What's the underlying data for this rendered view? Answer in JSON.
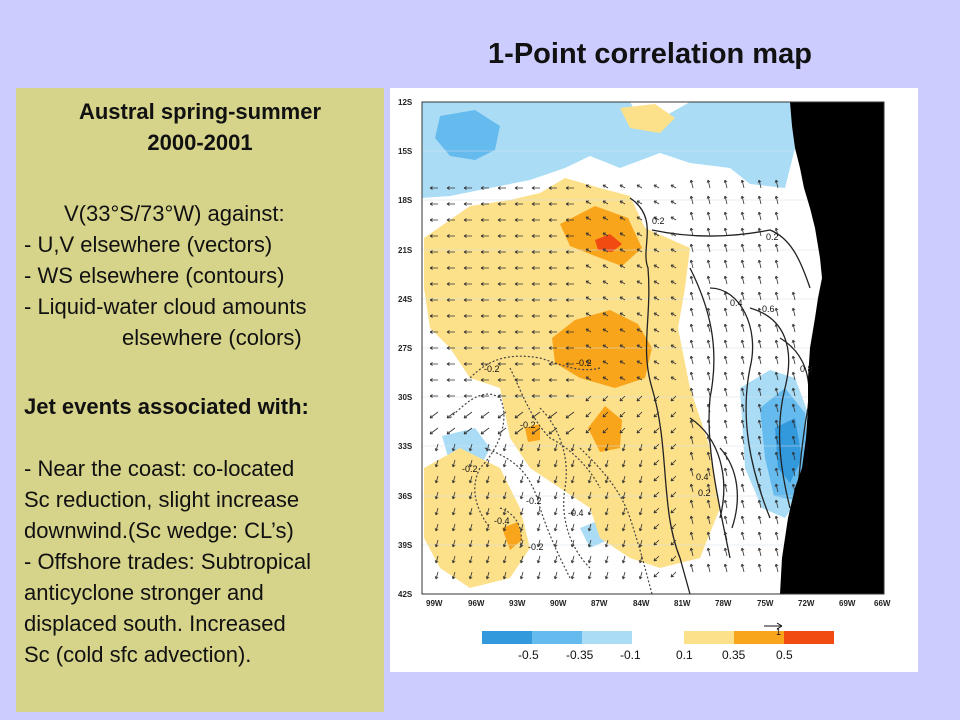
{
  "slide": {
    "title": "1-Point correlation map",
    "colors": {
      "background": "#ccccff",
      "panel": "#d6d38a"
    }
  },
  "panel": {
    "heading_line1": "Austral spring-summer",
    "heading_line2": "2000-2001",
    "lines": [
      "V(33°S/73°W) against:",
      "- U,V elsewhere (vectors)",
      "- WS elsewhere (contours)",
      "- Liquid-water cloud amounts",
      "elsewhere (colors)"
    ],
    "jet_heading": "Jet events associated with:",
    "findings": [
      "- Near the coast: co-located",
      "Sc reduction, slight increase",
      "downwind.(Sc wedge: CL’s)",
      "- Offshore trades: Subtropical",
      "anticyclone stronger and",
      "displaced south. Increased",
      "Sc (cold sfc advection)."
    ]
  },
  "map": {
    "lat_labels": [
      "12S",
      "15S",
      "18S",
      "21S",
      "24S",
      "27S",
      "30S",
      "33S",
      "36S",
      "39S",
      "42S"
    ],
    "lon_labels": [
      "99W",
      "96W",
      "93W",
      "90W",
      "87W",
      "84W",
      "81W",
      "78W",
      "75W",
      "72W",
      "69W",
      "66W"
    ],
    "contour_labels": [
      "0.2",
      "0.2",
      "0.4",
      "0.6",
      "0.8",
      "-0.2",
      "-0.2",
      "-0.2",
      "-0.2",
      "-0.2",
      "-0.4",
      "-0.4",
      "-0.2",
      "0.4",
      "0.2"
    ],
    "vector_ref": "1",
    "legend": {
      "colors": [
        "#3399dd",
        "#66bbee",
        "#aaddf5",
        "#ffffff",
        "#fde08a",
        "#f9a51c",
        "#f24b12"
      ],
      "labels": [
        "-0.5",
        "-0.35",
        "-0.1",
        "0.1",
        "0.35",
        "0.5"
      ]
    }
  }
}
